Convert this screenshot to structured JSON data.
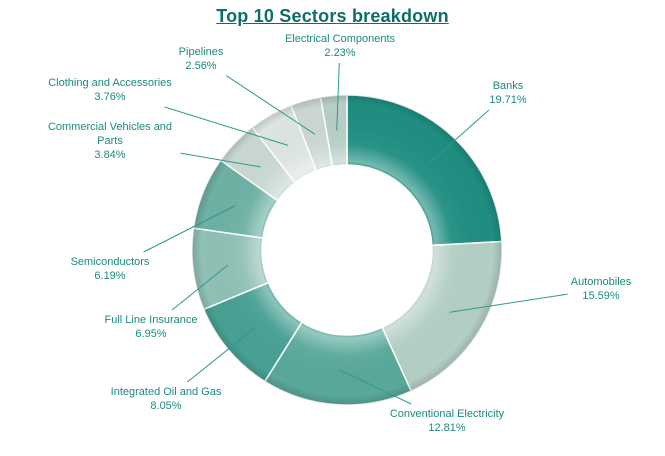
{
  "chart_data": {
    "type": "pie",
    "subtype": "donut",
    "title": "Top 10 Sectors breakdown",
    "title_color": "#0d6e68",
    "label_color": "#1b8a7f",
    "leader_line_color": "#2f9a8e",
    "start_angle_deg": 0,
    "direction": "clockwise",
    "legend_position": "none",
    "labels_shown": "callouts-with-percent",
    "segments": [
      {
        "label": "Banks",
        "value": 19.71,
        "display": "19.71%",
        "color": "#1f8e81"
      },
      {
        "label": "Automobiles",
        "value": 15.59,
        "display": "15.59%",
        "color": "#b3cec3"
      },
      {
        "label": "Conventional Electricity",
        "value": 12.81,
        "display": "12.81%",
        "color": "#58a89b"
      },
      {
        "label": "Integrated Oil and Gas",
        "value": 8.05,
        "display": "8.05%",
        "color": "#47a093"
      },
      {
        "label": "Full Line Insurance",
        "value": 6.95,
        "display": "6.95%",
        "color": "#8fc0b5"
      },
      {
        "label": "Semiconductors",
        "value": 6.19,
        "display": "6.19%",
        "color": "#6db1a4"
      },
      {
        "label": "Commercial Vehicles and Parts",
        "value": 3.84,
        "display": "3.84%",
        "color": "#c9d8d1"
      },
      {
        "label": "Clothing and Accessories",
        "value": 3.76,
        "display": "3.76%",
        "color": "#dde5e0"
      },
      {
        "label": "Pipelines",
        "value": 2.56,
        "display": "2.56%",
        "color": "#ccd7d2"
      },
      {
        "label": "Electrical Components",
        "value": 2.23,
        "display": "2.23%",
        "color": "#b7cec6"
      }
    ]
  }
}
